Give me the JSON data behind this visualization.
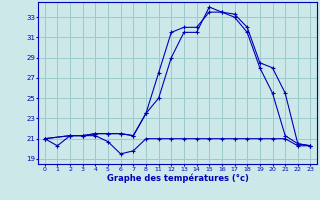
{
  "xlabel": "Graphe des températures (°c)",
  "bg_color": "#cce8e8",
  "grid_color": "#99cccc",
  "line_color": "#0000bb",
  "yticks": [
    19,
    21,
    23,
    25,
    27,
    29,
    31,
    33
  ],
  "xtick_labels": [
    "0",
    "1",
    "2",
    "3",
    "4",
    "5",
    "6",
    "7",
    "8",
    "11",
    "12",
    "13",
    "14",
    "15",
    "16",
    "17",
    "18",
    "19",
    "20",
    "21",
    "22",
    "23"
  ],
  "xtick_pos": [
    0,
    1,
    2,
    3,
    4,
    5,
    6,
    7,
    8,
    9,
    10,
    11,
    12,
    13,
    14,
    15,
    16,
    17,
    18,
    19,
    20,
    21
  ],
  "xlim": [
    -0.5,
    21.5
  ],
  "ylim": [
    18.5,
    34.5
  ],
  "curve1_x": [
    0,
    1,
    2,
    3,
    4,
    5,
    6,
    7,
    8,
    9,
    10,
    11,
    12,
    13,
    14,
    15,
    16,
    17,
    18,
    19,
    20,
    21
  ],
  "curve1_y": [
    21.0,
    20.3,
    21.3,
    21.3,
    21.3,
    20.7,
    19.5,
    19.8,
    21.0,
    21.0,
    21.0,
    21.0,
    21.0,
    21.0,
    21.0,
    21.0,
    21.0,
    21.0,
    21.0,
    21.0,
    20.3,
    20.3
  ],
  "curve2_x": [
    0,
    2,
    3,
    4,
    5,
    6,
    7,
    8,
    9,
    10,
    11,
    12,
    13,
    14,
    15,
    16,
    17,
    18,
    19,
    20,
    21
  ],
  "curve2_y": [
    21.0,
    21.3,
    21.3,
    21.5,
    21.5,
    21.5,
    21.3,
    23.5,
    27.5,
    31.5,
    32.0,
    32.0,
    33.5,
    33.5,
    33.0,
    31.5,
    28.0,
    25.5,
    21.3,
    20.5,
    20.3
  ],
  "curve3_x": [
    0,
    2,
    3,
    4,
    5,
    6,
    7,
    8,
    9,
    10,
    11,
    12,
    13,
    14,
    15,
    16,
    17,
    18,
    19,
    20,
    21
  ],
  "curve3_y": [
    21.0,
    21.3,
    21.3,
    21.5,
    21.5,
    21.5,
    21.3,
    23.5,
    25.0,
    29.0,
    31.5,
    31.5,
    34.0,
    33.5,
    33.3,
    32.0,
    28.5,
    28.0,
    25.5,
    20.5,
    20.3
  ]
}
